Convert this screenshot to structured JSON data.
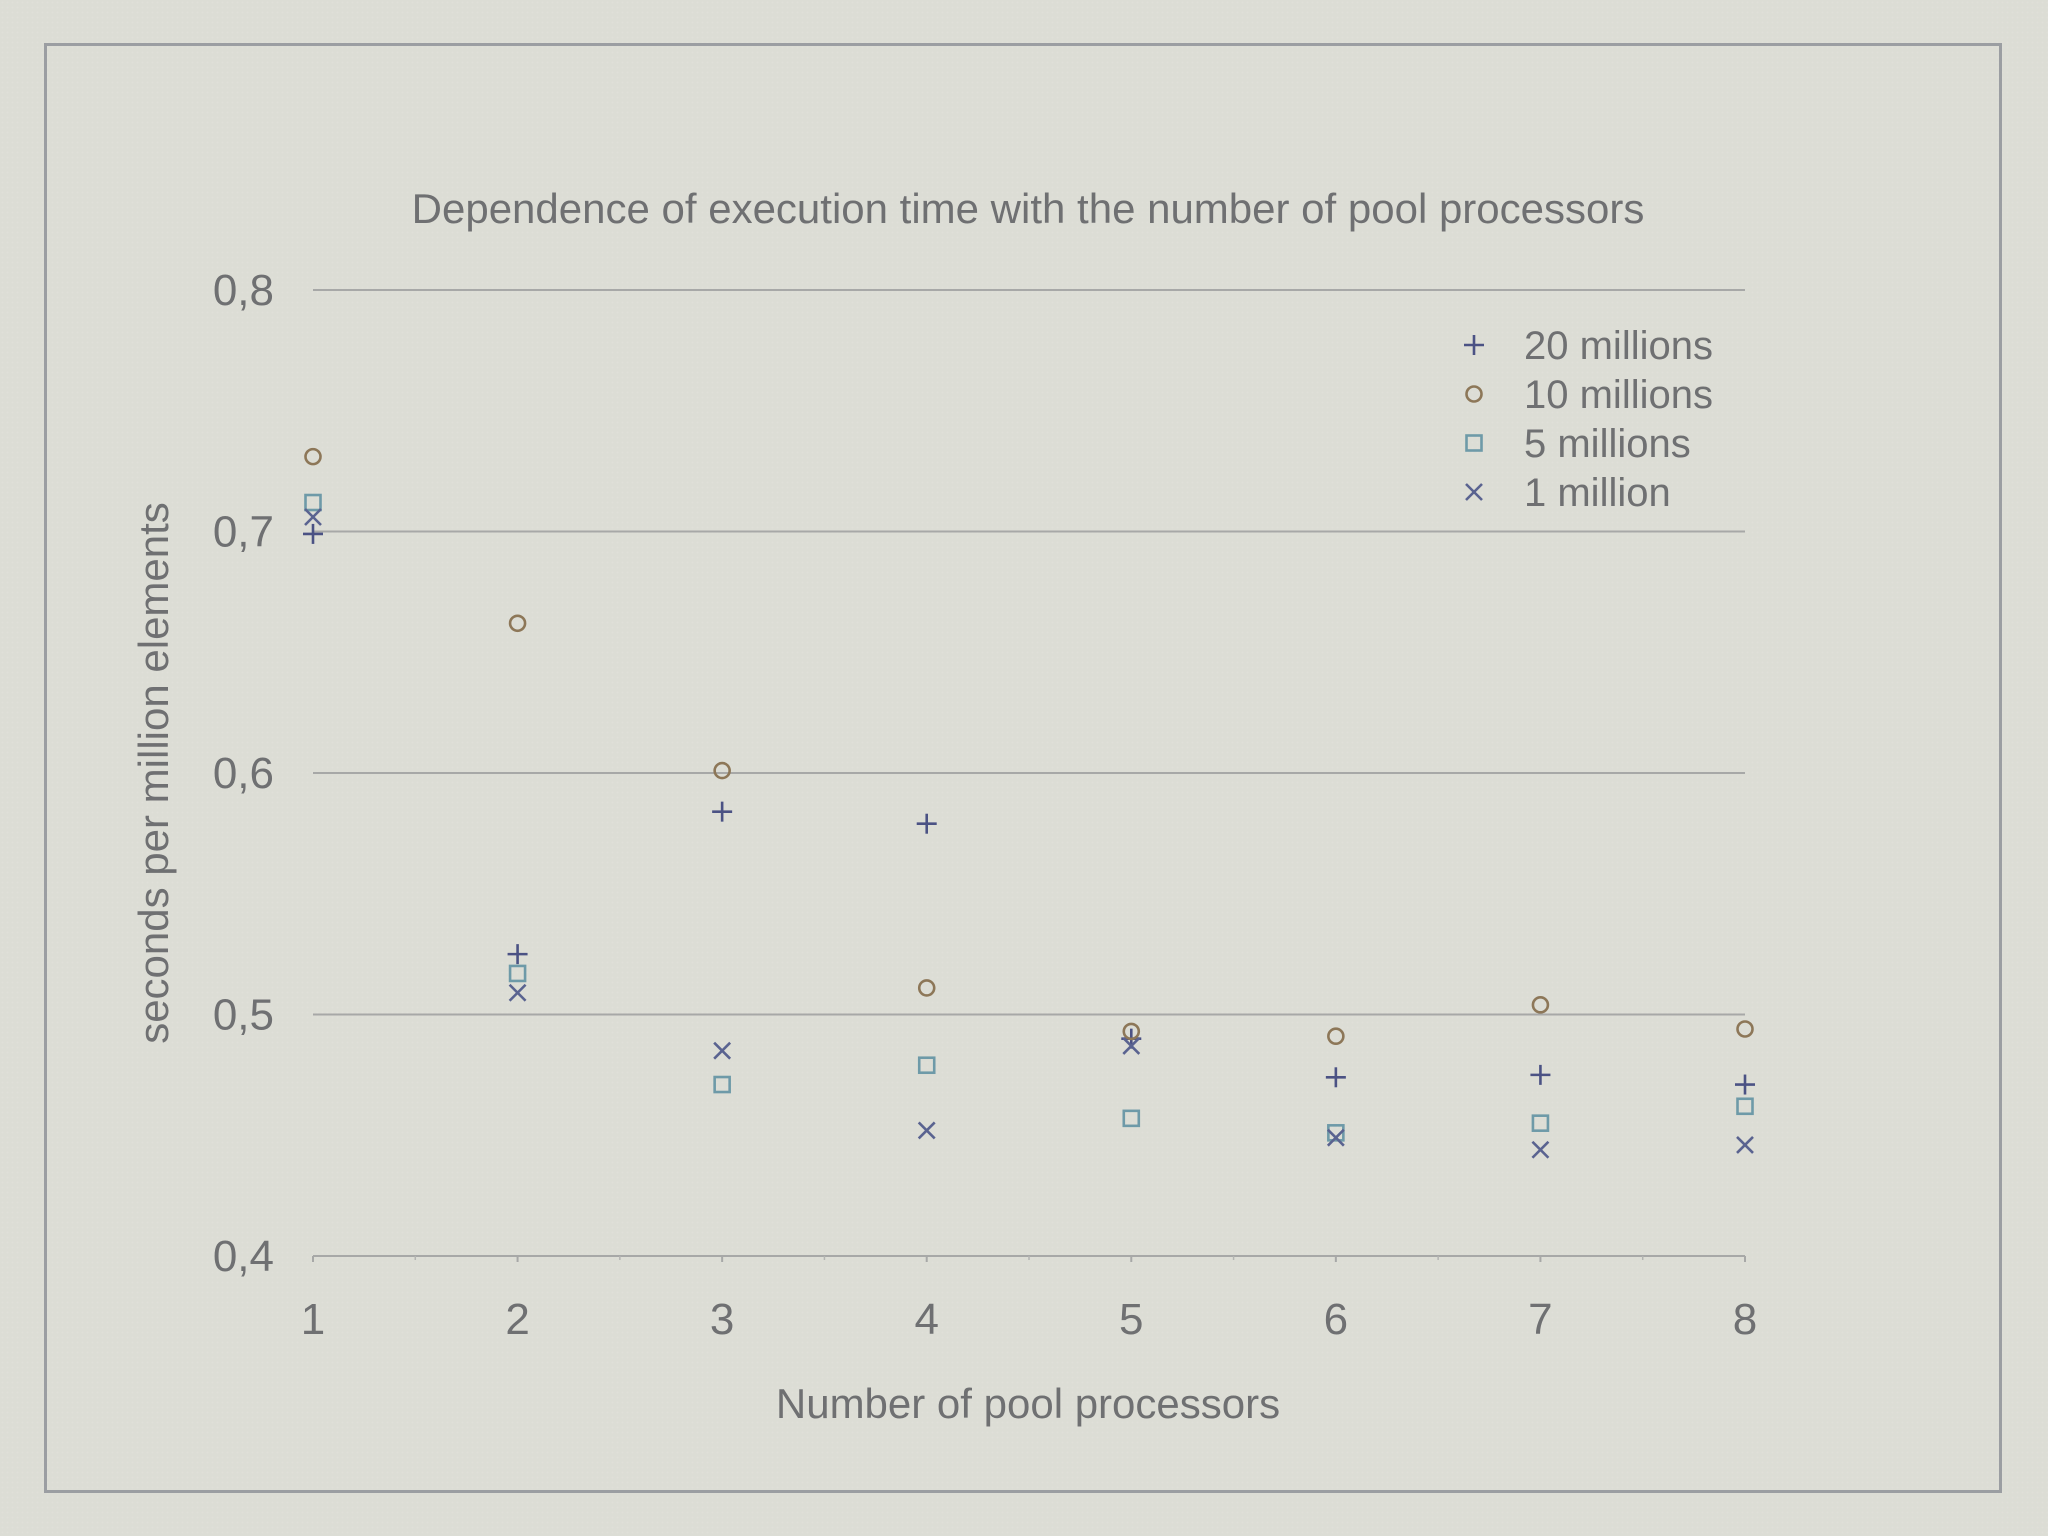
{
  "chart_data": {
    "type": "scatter",
    "title": "Dependence of execution time with the number of pool processors",
    "xlabel": "Number of pool processors",
    "ylabel": "seconds per million elements",
    "xlim": [
      1,
      8
    ],
    "ylim": [
      0.4,
      0.8
    ],
    "x_ticks": [
      1,
      2,
      3,
      4,
      5,
      6,
      7,
      8
    ],
    "x_tick_labels": [
      "1",
      "2",
      "3",
      "4",
      "5",
      "6",
      "7",
      "8"
    ],
    "y_ticks": [
      0.4,
      0.5,
      0.6,
      0.7,
      0.8
    ],
    "y_tick_labels": [
      "0,4",
      "0,5",
      "0,6",
      "0,7",
      "0,8"
    ],
    "grid": "horizontal",
    "legend_position": "top-right",
    "series": [
      {
        "name": "20 millions",
        "marker": "plus",
        "color": "#4b5284",
        "x": [
          1,
          2,
          3,
          4,
          5,
          6,
          7,
          8
        ],
        "y": [
          0.699,
          0.525,
          0.584,
          0.579,
          0.49,
          0.474,
          0.475,
          0.471
        ]
      },
      {
        "name": "10 millions",
        "marker": "circle",
        "color": "#8d7758",
        "x": [
          1,
          2,
          3,
          4,
          5,
          6,
          7,
          8
        ],
        "y": [
          0.731,
          0.662,
          0.601,
          0.511,
          0.493,
          0.491,
          0.504,
          0.494
        ]
      },
      {
        "name": "5 millions",
        "marker": "square",
        "color": "#6e9aa8",
        "x": [
          1,
          2,
          3,
          4,
          5,
          6,
          7,
          8
        ],
        "y": [
          0.712,
          0.517,
          0.471,
          0.479,
          0.457,
          0.451,
          0.455,
          0.462
        ]
      },
      {
        "name": "1 million",
        "marker": "x",
        "color": "#5a6390",
        "x": [
          1,
          2,
          3,
          4,
          5,
          6,
          7,
          8
        ],
        "y": [
          0.706,
          0.509,
          0.485,
          0.452,
          0.487,
          0.449,
          0.444,
          0.446
        ]
      }
    ]
  }
}
